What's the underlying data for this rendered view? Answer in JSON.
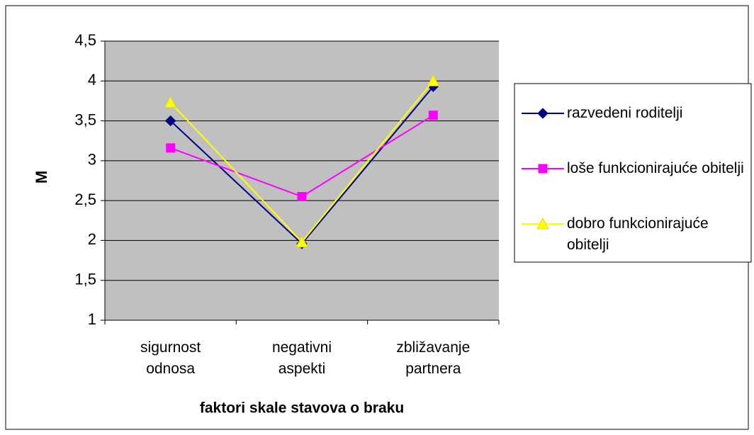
{
  "chart_data": {
    "type": "line",
    "y_label": "M",
    "x_label": "faktori skale stavova o braku",
    "categories": [
      "sigurnost odnosa",
      "negativni aspekti",
      "zbližavanje partnera"
    ],
    "series": [
      {
        "name": "razvedeni roditelji",
        "color": "#000080",
        "marker": "diamond",
        "values": [
          3.5,
          1.96,
          3.93
        ]
      },
      {
        "name": "loše funkcionirajuće obitelji",
        "color": "#ff00ff",
        "marker": "square",
        "values": [
          3.16,
          2.55,
          3.57
        ]
      },
      {
        "name": "dobro funkcionirajuće obitelji",
        "color": "#ffff00",
        "marker": "triangle",
        "values": [
          3.73,
          1.98,
          4.0
        ]
      }
    ],
    "ylim": [
      1,
      4.5
    ],
    "yticks": [
      1,
      {
        "value": 1.5,
        "label": "1,5"
      },
      2,
      {
        "value": 2.5,
        "label": "2,5"
      },
      3,
      {
        "value": 3.5,
        "label": "3,5"
      },
      4,
      {
        "value": 4.5,
        "label": "4,5"
      }
    ],
    "grid": true,
    "legend": "right",
    "plot_background": "#c0c0c0"
  }
}
